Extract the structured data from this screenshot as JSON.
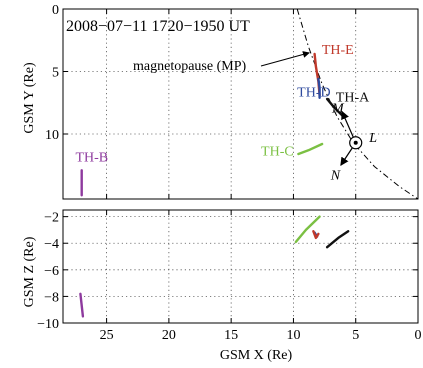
{
  "title": "2008−07−11  1720−1950 UT",
  "chart_data": [
    {
      "type": "line",
      "panel": "top",
      "xlabel": "",
      "ylabel": "GSM Y  (Re)",
      "xlim": [
        0,
        28.5
      ],
      "xaxis_reversed": true,
      "ylim": [
        0,
        15.2
      ],
      "yaxis_reversed": true,
      "yticks": [
        0,
        5,
        10
      ],
      "xticks": [
        0,
        5,
        10,
        15,
        20,
        25
      ],
      "grid": true,
      "series": [
        {
          "name": "TH-E",
          "color": "#c0392b",
          "x": [
            8.3,
            8.2,
            8.0,
            7.9
          ],
          "y": [
            3.6,
            4.6,
            5.8,
            6.9
          ]
        },
        {
          "name": "TH-D",
          "color": "#2e4a9e",
          "x": [
            8.0,
            7.9,
            7.9
          ],
          "y": [
            5.6,
            6.3,
            7.1
          ]
        },
        {
          "name": "TH-A",
          "color": "#111111",
          "x": [
            7.3,
            6.7,
            6.0
          ],
          "y": [
            7.2,
            7.9,
            8.6
          ]
        },
        {
          "name": "TH-C",
          "color": "#7bc043",
          "x": [
            9.6,
            8.8,
            7.7
          ],
          "y": [
            11.6,
            11.3,
            10.8
          ]
        },
        {
          "name": "TH-B",
          "color": "#8e3a9e",
          "x": [
            27.0,
            27.0
          ],
          "y": [
            12.9,
            14.9
          ]
        }
      ],
      "magnetopause": {
        "label": "magnetopause (MP)",
        "x": [
          9.7,
          8.8,
          7.7,
          6.5,
          5.2,
          3.5,
          1.5,
          0.0
        ],
        "y": [
          0.0,
          3.0,
          6.0,
          8.6,
          10.7,
          12.6,
          14.2,
          15.2
        ]
      },
      "coordinate_system": {
        "origin": [
          5.0,
          10.7
        ],
        "axes": [
          {
            "label": "L",
            "to": [
              4.4,
              10.3
            ]
          },
          {
            "label": "M",
            "to": [
              6.1,
              8.2
            ]
          },
          {
            "label": "N",
            "to": [
              6.2,
              12.5
            ]
          }
        ]
      }
    },
    {
      "type": "line",
      "panel": "bottom",
      "xlabel": "GSM X  (Re)",
      "ylabel": "GSM Z  (Re)",
      "xlim": [
        0,
        28.5
      ],
      "xaxis_reversed": true,
      "ylim": [
        -10,
        -1.5
      ],
      "yticks": [
        -2,
        -4,
        -6,
        -8,
        -10
      ],
      "xticks": [
        0,
        5,
        10,
        15,
        20,
        25
      ],
      "grid": true,
      "series": [
        {
          "name": "TH-C",
          "color": "#7bc043",
          "x": [
            9.8,
            9.0,
            7.9
          ],
          "y": [
            -3.9,
            -3.0,
            -2.0
          ]
        },
        {
          "name": "TH-D",
          "color": "#2e4a9e",
          "x": [
            8.3,
            8.1
          ],
          "y": [
            -3.2,
            -3.5
          ]
        },
        {
          "name": "TH-E",
          "color": "#c0392b",
          "x": [
            8.4,
            8.2,
            8.0
          ],
          "y": [
            -3.1,
            -3.6,
            -3.3
          ]
        },
        {
          "name": "TH-A",
          "color": "#111111",
          "x": [
            7.3,
            6.4,
            5.6
          ],
          "y": [
            -4.3,
            -3.6,
            -3.1
          ]
        },
        {
          "name": "TH-B",
          "color": "#8e3a9e",
          "x": [
            27.1,
            26.9
          ],
          "y": [
            -7.8,
            -9.5
          ]
        }
      ]
    }
  ]
}
